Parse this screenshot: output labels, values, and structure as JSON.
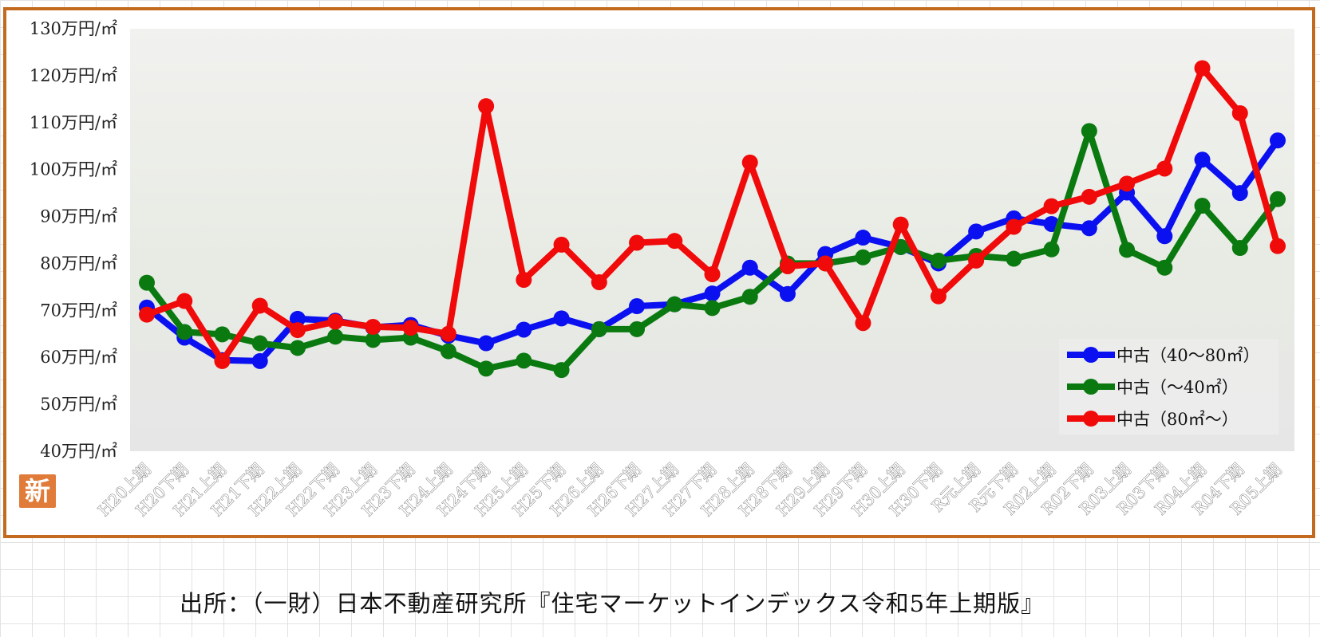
{
  "source": "出所：（一財）日本不動産研究所『住宅マーケットインデックス令和5年上期版』",
  "badge_text": "新",
  "chart_data": {
    "type": "line",
    "title": "",
    "xlabel": "",
    "ylabel": "",
    "ylim": [
      40,
      130
    ],
    "yticks": [
      40,
      50,
      60,
      70,
      80,
      90,
      100,
      110,
      120,
      130
    ],
    "ytick_unit": "万円/㎡",
    "grid": false,
    "legend_position": "bottom-right",
    "categories": [
      "H20上期",
      "H20下期",
      "H21上期",
      "H21下期",
      "H22上期",
      "H22下期",
      "H23上期",
      "H23下期",
      "H24上期",
      "H24下期",
      "H25上期",
      "H25下期",
      "H26上期",
      "H26下期",
      "H27上期",
      "H27下期",
      "H28上期",
      "H28下期",
      "H29上期",
      "H29下期",
      "H30上期",
      "H30下期",
      "R元上期",
      "R元下期",
      "R02上期",
      "R02下期",
      "R03上期",
      "R03下期",
      "R04上期",
      "R04下期",
      "R05上期"
    ],
    "series": [
      {
        "name": "中古（40～80㎡）",
        "color": "#0a10f0",
        "values": [
          70.6,
          64.2,
          59.4,
          59.2,
          68.2,
          67.8,
          66.4,
          66.9,
          64.6,
          63.0,
          65.9,
          68.3,
          66.0,
          70.9,
          71.3,
          73.6,
          79.1,
          73.5,
          82.0,
          85.5,
          83.5,
          80.0,
          86.8,
          89.6,
          88.4,
          87.5,
          95.1,
          85.8,
          102.1,
          95.0,
          106.2
        ]
      },
      {
        "name": "中古（～40㎡）",
        "color": "#0a7a10",
        "values": [
          75.9,
          65.4,
          64.9,
          63.0,
          62.0,
          64.4,
          63.7,
          64.2,
          61.3,
          57.6,
          59.3,
          57.3,
          66.0,
          66.0,
          71.3,
          70.5,
          72.9,
          80.0,
          80.0,
          81.3,
          83.5,
          80.6,
          81.6,
          81.0,
          83.0,
          108.2,
          82.9,
          79.1,
          92.3,
          83.3,
          93.7
        ]
      },
      {
        "name": "中古（80㎡～）",
        "color": "#f00a0a",
        "values": [
          69.1,
          72.0,
          59.2,
          71.0,
          65.8,
          67.6,
          66.5,
          66.3,
          65.0,
          113.5,
          76.5,
          84.0,
          76.0,
          84.4,
          84.8,
          77.7,
          101.5,
          79.4,
          80.0,
          67.3,
          88.3,
          73.0,
          80.6,
          87.8,
          92.2,
          94.2,
          97.0,
          100.2,
          121.6,
          112.0,
          83.7
        ]
      }
    ]
  }
}
